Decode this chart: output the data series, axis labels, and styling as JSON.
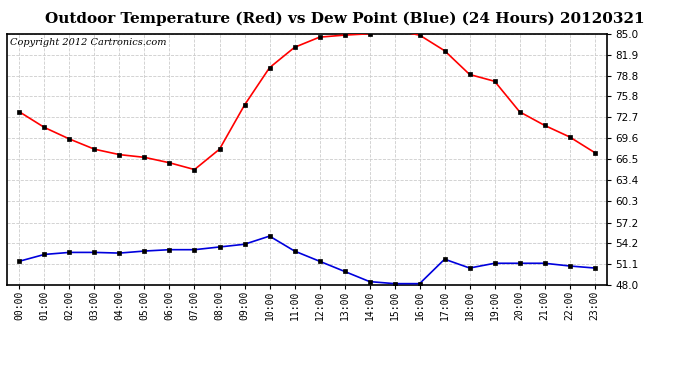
{
  "title": "Outdoor Temperature (Red) vs Dew Point (Blue) (24 Hours) 20120321",
  "copyright_text": "Copyright 2012 Cartronics.com",
  "hours": [
    0,
    1,
    2,
    3,
    4,
    5,
    6,
    7,
    8,
    9,
    10,
    11,
    12,
    13,
    14,
    15,
    16,
    17,
    18,
    19,
    20,
    21,
    22,
    23
  ],
  "temp_red": [
    73.5,
    71.2,
    69.5,
    68.0,
    67.2,
    66.8,
    66.0,
    65.0,
    68.0,
    74.5,
    80.0,
    83.0,
    84.5,
    84.8,
    85.0,
    85.5,
    84.8,
    82.5,
    79.0,
    78.0,
    73.5,
    71.5,
    69.8,
    67.5
  ],
  "dew_blue": [
    51.5,
    52.5,
    52.8,
    52.8,
    52.7,
    53.0,
    53.2,
    53.2,
    53.6,
    54.0,
    55.2,
    53.0,
    51.5,
    50.0,
    48.5,
    48.2,
    48.2,
    51.8,
    50.5,
    51.2,
    51.2,
    51.2,
    50.8,
    50.5
  ],
  "ylim": [
    48.0,
    85.0
  ],
  "yticks": [
    48.0,
    51.1,
    54.2,
    57.2,
    60.3,
    63.4,
    66.5,
    69.6,
    72.7,
    75.8,
    78.8,
    81.9,
    85.0
  ],
  "bg_color": "#ffffff",
  "plot_bg_color": "#ffffff",
  "grid_color": "#cccccc",
  "red_color": "#ff0000",
  "blue_color": "#0000dd",
  "title_fontsize": 11,
  "copyright_fontsize": 7,
  "marker_color": "#000000",
  "marker_size": 3
}
